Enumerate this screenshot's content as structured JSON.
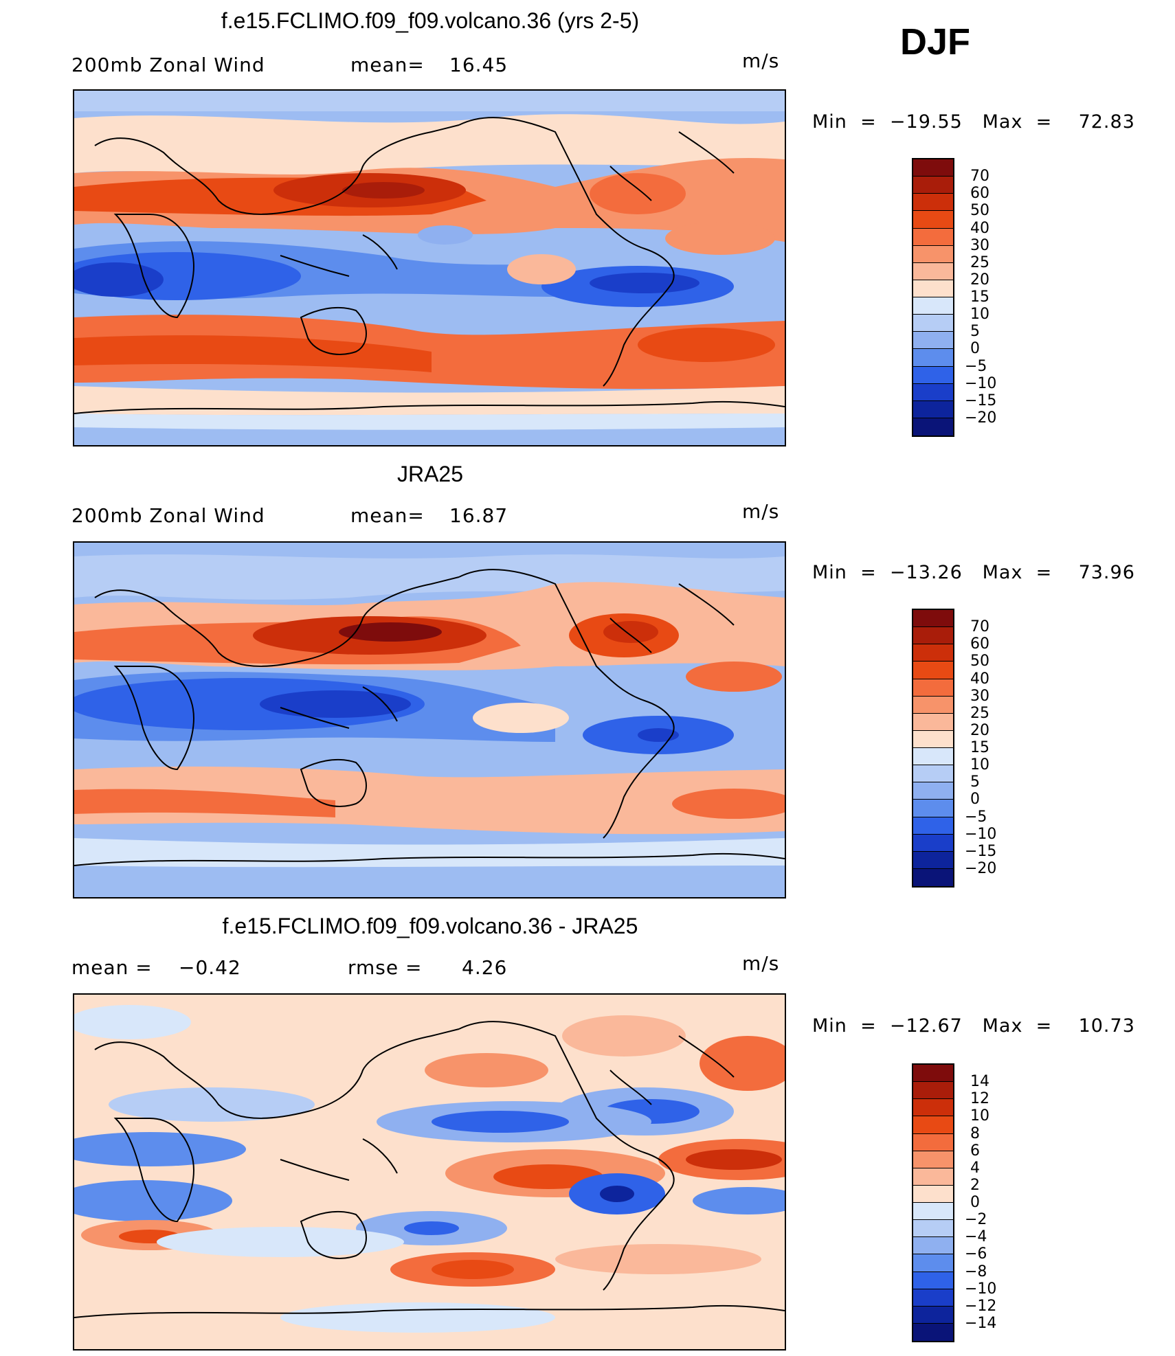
{
  "season": "DJF",
  "units": "m/s",
  "panels": [
    {
      "title": "f.e15.FCLIMO.f09_f09.volcano.36 (yrs 2-5)",
      "left_label": "200mb Zonal Wind",
      "mid_label": "mean=",
      "mid_value": "16.45",
      "min_label": "Min",
      "min_value": "−19.55",
      "max_label": "Max",
      "max_value": "72.83",
      "colorbar": {
        "labels": [
          "70",
          "60",
          "50",
          "40",
          "30",
          "25",
          "20",
          "15",
          "10",
          "5",
          "0",
          "−5",
          "−10",
          "−15",
          "−20"
        ],
        "colors": [
          "#7e0c0c",
          "#a91d0a",
          "#cc2f0a",
          "#e84a14",
          "#f36c3d",
          "#f7936a",
          "#fab89a",
          "#fde0cc",
          "#d8e7fa",
          "#b6cdf5",
          "#8fb0f0",
          "#5d8ded",
          "#2f62e8",
          "#1a3ec9",
          "#0d249c",
          "#0a1478"
        ]
      },
      "chart_data": {
        "type": "heatmap",
        "title": "f.e15.FCLIMO.f09_f09.volcano.36 (yrs 2-5)",
        "variable": "200mb Zonal Wind",
        "units": "m/s",
        "mean": 16.45,
        "min": -19.55,
        "max": 72.83,
        "contour_levels": [
          -20,
          -15,
          -10,
          -5,
          0,
          5,
          10,
          15,
          20,
          25,
          30,
          40,
          50,
          60,
          70
        ]
      }
    },
    {
      "title": "JRA25",
      "left_label": "200mb Zonal Wind",
      "mid_label": "mean=",
      "mid_value": "16.87",
      "min_label": "Min",
      "min_value": "−13.26",
      "max_label": "Max",
      "max_value": "73.96",
      "colorbar": {
        "labels": [
          "70",
          "60",
          "50",
          "40",
          "30",
          "25",
          "20",
          "15",
          "10",
          "5",
          "0",
          "−5",
          "−10",
          "−15",
          "−20"
        ],
        "colors": [
          "#7e0c0c",
          "#a91d0a",
          "#cc2f0a",
          "#e84a14",
          "#f36c3d",
          "#f7936a",
          "#fab89a",
          "#fde0cc",
          "#d8e7fa",
          "#b6cdf5",
          "#8fb0f0",
          "#5d8ded",
          "#2f62e8",
          "#1a3ec9",
          "#0d249c",
          "#0a1478"
        ]
      },
      "chart_data": {
        "type": "heatmap",
        "title": "JRA25",
        "variable": "200mb Zonal Wind",
        "units": "m/s",
        "mean": 16.87,
        "min": -13.26,
        "max": 73.96,
        "contour_levels": [
          -20,
          -15,
          -10,
          -5,
          0,
          5,
          10,
          15,
          20,
          25,
          30,
          40,
          50,
          60,
          70
        ]
      }
    },
    {
      "title": "f.e15.FCLIMO.f09_f09.volcano.36 - JRA25",
      "left_label": "mean =",
      "left_value": "−0.42",
      "mid_label": "rmse =",
      "mid_value": "4.26",
      "min_label": "Min",
      "min_value": "−12.67",
      "max_label": "Max",
      "max_value": "10.73",
      "colorbar": {
        "labels": [
          "14",
          "12",
          "10",
          "8",
          "6",
          "4",
          "2",
          "0",
          "−2",
          "−4",
          "−6",
          "−8",
          "−10",
          "−12",
          "−14"
        ],
        "colors": [
          "#7e0c0c",
          "#a91d0a",
          "#cc2f0a",
          "#e84a14",
          "#f36c3d",
          "#f7936a",
          "#fab89a",
          "#fde0cc",
          "#d8e7fa",
          "#b6cdf5",
          "#8fb0f0",
          "#5d8ded",
          "#2f62e8",
          "#1a3ec9",
          "#0d249c",
          "#0a1478"
        ]
      },
      "chart_data": {
        "type": "heatmap",
        "title": "f.e15.FCLIMO.f09_f09.volcano.36 - JRA25",
        "units": "m/s",
        "mean": -0.42,
        "rmse": 4.26,
        "min": -12.67,
        "max": 10.73,
        "contour_levels": [
          -14,
          -12,
          -10,
          -8,
          -6,
          -4,
          -2,
          0,
          2,
          4,
          6,
          8,
          10,
          12,
          14
        ]
      }
    }
  ]
}
